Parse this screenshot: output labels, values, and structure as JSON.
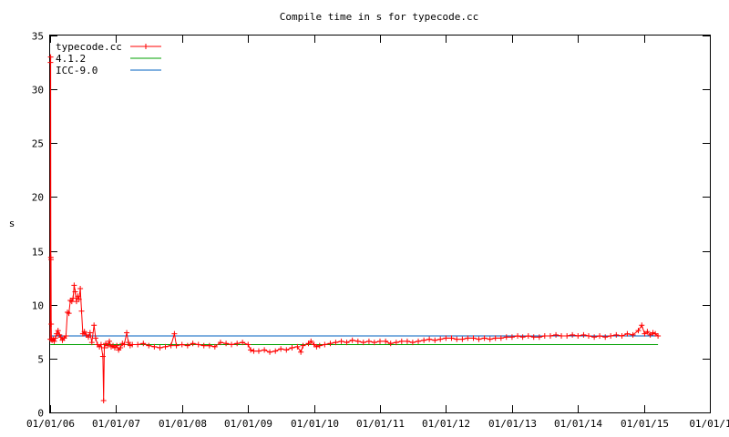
{
  "chart_data": {
    "type": "line",
    "title": "Compile time in s for typecode.cc",
    "xlabel": "",
    "ylabel": "s",
    "x_ticks": [
      "01/01/06",
      "01/01/07",
      "01/01/08",
      "01/01/09",
      "01/01/10",
      "01/01/11",
      "01/01/12",
      "01/01/13",
      "01/01/14",
      "01/01/15",
      "01/01/1"
    ],
    "y_ticks": [
      0,
      5,
      10,
      15,
      20,
      25,
      30,
      35
    ],
    "xlim": [
      "01/01/06",
      "01/01/16"
    ],
    "ylim": [
      0,
      35
    ],
    "grid": false,
    "legend_position": "top-left",
    "series": [
      {
        "name": "typecode.cc",
        "color": "#ff0000",
        "marker": "plus",
        "points": [
          [
            "01/02/06",
            6.8
          ],
          [
            "01/03/06",
            32.5
          ],
          [
            "01/04/06",
            33.0
          ],
          [
            "01/05/06",
            14.4
          ],
          [
            "01/06/06",
            14.2
          ],
          [
            "01/07/06",
            8.2
          ],
          [
            "01/08/06",
            6.8
          ],
          [
            "01/12/06",
            6.7
          ],
          [
            "01/18/06",
            6.8
          ],
          [
            "01/24/06",
            6.6
          ],
          [
            "01/30/06",
            6.9
          ],
          [
            "02/06/06",
            7.3
          ],
          [
            "02/14/06",
            7.6
          ],
          [
            "02/22/06",
            7.2
          ],
          [
            "03/01/06",
            7.0
          ],
          [
            "03/10/06",
            6.7
          ],
          [
            "03/20/06",
            6.9
          ],
          [
            "03/30/06",
            7.1
          ],
          [
            "04/07/06",
            9.3
          ],
          [
            "04/15/06",
            9.2
          ],
          [
            "04/23/06",
            10.4
          ],
          [
            "05/01/06",
            10.3
          ],
          [
            "05/08/06",
            10.6
          ],
          [
            "05/14/06",
            11.8
          ],
          [
            "05/20/06",
            11.2
          ],
          [
            "05/27/06",
            10.3
          ],
          [
            "06/03/06",
            10.8
          ],
          [
            "06/10/06",
            10.5
          ],
          [
            "06/17/06",
            11.5
          ],
          [
            "06/24/06",
            9.4
          ],
          [
            "07/01/06",
            7.3
          ],
          [
            "07/10/06",
            7.5
          ],
          [
            "07/20/06",
            7.2
          ],
          [
            "08/01/06",
            7.0
          ],
          [
            "08/10/06",
            7.4
          ],
          [
            "08/20/06",
            6.5
          ],
          [
            "09/01/06",
            8.1
          ],
          [
            "09/10/06",
            6.9
          ],
          [
            "09/20/06",
            6.3
          ],
          [
            "10/01/06",
            6.1
          ],
          [
            "10/10/06",
            6.3
          ],
          [
            "10/20/06",
            5.2
          ],
          [
            "10/24/06",
            1.1
          ],
          [
            "10/28/06",
            6.0
          ],
          [
            "11/05/06",
            6.4
          ],
          [
            "11/15/06",
            6.2
          ],
          [
            "11/25/06",
            6.6
          ],
          [
            "12/05/06",
            6.1
          ],
          [
            "12/15/06",
            6.2
          ],
          [
            "12/25/06",
            6.0
          ],
          [
            "01/05/07",
            6.2
          ],
          [
            "01/15/07",
            5.8
          ],
          [
            "01/25/07",
            6.0
          ],
          [
            "02/05/07",
            6.4
          ],
          [
            "02/15/07",
            6.3
          ],
          [
            "03/01/07",
            7.4
          ],
          [
            "03/10/07",
            6.5
          ],
          [
            "03/20/07",
            6.2
          ],
          [
            "04/01/07",
            6.3
          ],
          [
            "05/01/07",
            6.3
          ],
          [
            "06/01/07",
            6.4
          ],
          [
            "07/01/07",
            6.2
          ],
          [
            "08/01/07",
            6.1
          ],
          [
            "09/01/07",
            6.0
          ],
          [
            "10/01/07",
            6.1
          ],
          [
            "11/01/07",
            6.2
          ],
          [
            "11/20/07",
            7.3
          ],
          [
            "12/01/07",
            6.2
          ],
          [
            "01/01/08",
            6.3
          ],
          [
            "02/01/08",
            6.2
          ],
          [
            "03/01/08",
            6.4
          ],
          [
            "04/01/08",
            6.3
          ],
          [
            "05/01/08",
            6.2
          ],
          [
            "06/01/08",
            6.2
          ],
          [
            "07/01/08",
            6.1
          ],
          [
            "08/01/08",
            6.5
          ],
          [
            "09/01/08",
            6.4
          ],
          [
            "10/01/08",
            6.3
          ],
          [
            "11/01/08",
            6.4
          ],
          [
            "12/01/08",
            6.5
          ],
          [
            "01/01/09",
            6.3
          ],
          [
            "01/15/09",
            5.8
          ],
          [
            "02/01/09",
            5.7
          ],
          [
            "03/01/09",
            5.7
          ],
          [
            "04/01/09",
            5.8
          ],
          [
            "05/01/09",
            5.6
          ],
          [
            "06/01/09",
            5.7
          ],
          [
            "07/01/09",
            5.9
          ],
          [
            "08/01/09",
            5.8
          ],
          [
            "09/01/09",
            6.0
          ],
          [
            "10/01/09",
            6.1
          ],
          [
            "10/20/09",
            5.6
          ],
          [
            "11/01/09",
            6.2
          ],
          [
            "12/01/09",
            6.4
          ],
          [
            "12/15/09",
            6.6
          ],
          [
            "01/01/10",
            6.3
          ],
          [
            "01/15/10",
            6.1
          ],
          [
            "02/01/10",
            6.2
          ],
          [
            "03/01/10",
            6.3
          ],
          [
            "04/01/10",
            6.4
          ],
          [
            "05/01/10",
            6.5
          ],
          [
            "06/01/10",
            6.6
          ],
          [
            "07/01/10",
            6.5
          ],
          [
            "08/01/10",
            6.7
          ],
          [
            "09/01/10",
            6.6
          ],
          [
            "10/01/10",
            6.5
          ],
          [
            "11/01/10",
            6.6
          ],
          [
            "12/01/10",
            6.5
          ],
          [
            "01/01/11",
            6.6
          ],
          [
            "02/01/11",
            6.6
          ],
          [
            "03/01/11",
            6.4
          ],
          [
            "04/01/11",
            6.5
          ],
          [
            "05/01/11",
            6.6
          ],
          [
            "06/01/11",
            6.6
          ],
          [
            "07/01/11",
            6.5
          ],
          [
            "08/01/11",
            6.6
          ],
          [
            "09/01/11",
            6.7
          ],
          [
            "10/01/11",
            6.8
          ],
          [
            "11/01/11",
            6.7
          ],
          [
            "12/01/11",
            6.8
          ],
          [
            "01/01/12",
            6.9
          ],
          [
            "02/01/12",
            6.9
          ],
          [
            "03/01/12",
            6.8
          ],
          [
            "04/01/12",
            6.8
          ],
          [
            "05/01/12",
            6.9
          ],
          [
            "06/01/12",
            6.9
          ],
          [
            "07/01/12",
            6.8
          ],
          [
            "08/01/12",
            6.9
          ],
          [
            "09/01/12",
            6.8
          ],
          [
            "10/01/12",
            6.9
          ],
          [
            "11/01/12",
            6.9
          ],
          [
            "12/01/12",
            7.0
          ],
          [
            "01/01/13",
            7.0
          ],
          [
            "02/01/13",
            7.1
          ],
          [
            "03/01/13",
            7.0
          ],
          [
            "04/01/13",
            7.1
          ],
          [
            "05/01/13",
            7.0
          ],
          [
            "06/01/13",
            7.0
          ],
          [
            "07/01/13",
            7.1
          ],
          [
            "08/01/13",
            7.1
          ],
          [
            "09/01/13",
            7.2
          ],
          [
            "10/01/13",
            7.1
          ],
          [
            "11/01/13",
            7.1
          ],
          [
            "12/01/13",
            7.2
          ],
          [
            "01/01/14",
            7.1
          ],
          [
            "02/01/14",
            7.2
          ],
          [
            "03/01/14",
            7.1
          ],
          [
            "04/01/14",
            7.0
          ],
          [
            "05/01/14",
            7.1
          ],
          [
            "06/01/14",
            7.0
          ],
          [
            "07/01/14",
            7.1
          ],
          [
            "08/01/14",
            7.2
          ],
          [
            "09/01/14",
            7.1
          ],
          [
            "10/01/14",
            7.3
          ],
          [
            "11/01/14",
            7.2
          ],
          [
            "12/01/14",
            7.6
          ],
          [
            "12/20/14",
            8.1
          ],
          [
            "01/05/15",
            7.3
          ],
          [
            "01/20/15",
            7.5
          ],
          [
            "02/05/15",
            7.2
          ],
          [
            "02/20/15",
            7.4
          ],
          [
            "03/05/15",
            7.3
          ],
          [
            "03/20/15",
            7.1
          ]
        ]
      },
      {
        "name": "4.1.2",
        "color": "#00a000",
        "y": 6.3
      },
      {
        "name": "ICC-9.0",
        "color": "#0060c0",
        "y": 7.1
      }
    ]
  }
}
